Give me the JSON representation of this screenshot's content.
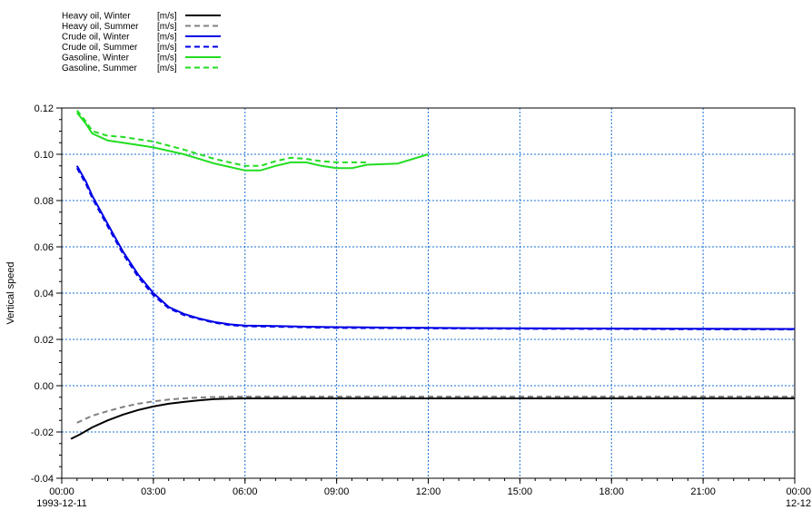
{
  "chart_data": {
    "type": "line",
    "title": "",
    "ylabel": "Vertical speed",
    "xlabel": "",
    "x_unit": "hours from 1993-12-11 00:00",
    "xlim": [
      0,
      24
    ],
    "ylim": [
      -0.04,
      0.12
    ],
    "grid": true,
    "legend_placement": "top-left",
    "x_ticks": [
      {
        "value": 0,
        "label": "00:00",
        "sublabel": "1993-12-11"
      },
      {
        "value": 3,
        "label": "03:00"
      },
      {
        "value": 6,
        "label": "06:00"
      },
      {
        "value": 9,
        "label": "09:00"
      },
      {
        "value": 12,
        "label": "12:00"
      },
      {
        "value": 15,
        "label": "15:00"
      },
      {
        "value": 18,
        "label": "18:00"
      },
      {
        "value": 21,
        "label": "21:00"
      },
      {
        "value": 24,
        "label": "00:00",
        "sublabel": "12-12"
      }
    ],
    "y_ticks": [
      {
        "value": 0.12,
        "label": "0.12"
      },
      {
        "value": 0.1,
        "label": "0.10"
      },
      {
        "value": 0.08,
        "label": "0.08"
      },
      {
        "value": 0.06,
        "label": "0.06"
      },
      {
        "value": 0.04,
        "label": "0.04"
      },
      {
        "value": 0.02,
        "label": "0.02"
      },
      {
        "value": 0.0,
        "label": "0.00"
      },
      {
        "value": -0.02,
        "label": "-0.02"
      },
      {
        "value": -0.04,
        "label": "-0.04"
      }
    ],
    "series": [
      {
        "name": "Heavy oil, Winter",
        "unit": "[m/s]",
        "color": "#000000",
        "dash": "solid",
        "x": [
          0.3,
          0.6,
          1,
          1.5,
          2,
          2.5,
          3,
          3.5,
          4,
          4.5,
          5,
          5.5,
          6,
          8,
          12,
          18,
          24
        ],
        "y": [
          -0.023,
          -0.021,
          -0.018,
          -0.015,
          -0.0125,
          -0.0105,
          -0.009,
          -0.0078,
          -0.007,
          -0.0063,
          -0.0058,
          -0.0056,
          -0.0055,
          -0.0055,
          -0.0055,
          -0.0055,
          -0.0055
        ]
      },
      {
        "name": "Heavy oil, Summer",
        "unit": "[m/s]",
        "color": "#808080",
        "dash": "dashed",
        "x": [
          0.5,
          1,
          1.5,
          2,
          2.5,
          3,
          3.5,
          4,
          4.5,
          5,
          5.5,
          6,
          8,
          12,
          18,
          24
        ],
        "y": [
          -0.016,
          -0.013,
          -0.011,
          -0.0092,
          -0.0078,
          -0.0068,
          -0.006,
          -0.0055,
          -0.0051,
          -0.0049,
          -0.0048,
          -0.0047,
          -0.0047,
          -0.0047,
          -0.0047,
          -0.0047
        ]
      },
      {
        "name": "Crude oil, Winter",
        "unit": "[m/s]",
        "color": "#0000E6",
        "dash": "solid",
        "x": [
          0.5,
          0.8,
          1,
          1.5,
          2,
          2.5,
          3,
          3.5,
          4,
          4.5,
          5,
          5.5,
          6,
          7,
          8,
          9,
          10,
          12,
          15,
          18,
          21,
          24
        ],
        "y": [
          0.095,
          0.088,
          0.082,
          0.07,
          0.058,
          0.048,
          0.04,
          0.034,
          0.031,
          0.029,
          0.0275,
          0.0265,
          0.026,
          0.0258,
          0.0255,
          0.0253,
          0.0252,
          0.025,
          0.0248,
          0.0247,
          0.0246,
          0.0245
        ]
      },
      {
        "name": "Crude oil, Summer",
        "unit": "[m/s]",
        "color": "#0000E6",
        "dash": "dashed",
        "x": [
          0.5,
          0.8,
          1,
          1.5,
          2,
          2.5,
          3,
          3.5,
          4,
          4.5,
          5,
          5.5,
          6,
          7,
          8,
          9,
          10,
          12,
          15,
          18,
          21,
          24
        ],
        "y": [
          0.094,
          0.087,
          0.081,
          0.069,
          0.057,
          0.047,
          0.039,
          0.0335,
          0.0305,
          0.0288,
          0.0272,
          0.0262,
          0.0257,
          0.0255,
          0.0252,
          0.025,
          0.0249,
          0.0248,
          0.0246,
          0.0245,
          0.0244,
          0.0243
        ]
      },
      {
        "name": "Gasoline, Winter",
        "unit": "[m/s]",
        "color": "#22DD22",
        "dash": "solid",
        "x": [
          0.5,
          0.8,
          1,
          1.5,
          2,
          3,
          4,
          5,
          6,
          6.5,
          7,
          7.5,
          8,
          8.5,
          9,
          9.5,
          10,
          11,
          12
        ],
        "y": [
          0.118,
          0.113,
          0.109,
          0.106,
          0.105,
          0.103,
          0.1,
          0.096,
          0.093,
          0.093,
          0.095,
          0.0965,
          0.0965,
          0.095,
          0.094,
          0.094,
          0.0955,
          0.096,
          0.1
        ]
      },
      {
        "name": "Gasoline, Summer",
        "unit": "[m/s]",
        "color": "#22DD22",
        "dash": "dashed",
        "x": [
          0.5,
          0.8,
          1,
          1.5,
          2,
          3,
          4,
          5,
          6,
          6.5,
          7,
          7.5,
          8,
          8.5,
          9,
          9.5,
          10
        ],
        "y": [
          0.119,
          0.114,
          0.11,
          0.108,
          0.1075,
          0.1055,
          0.102,
          0.098,
          0.095,
          0.095,
          0.097,
          0.0985,
          0.098,
          0.097,
          0.0965,
          0.0965,
          0.0965
        ]
      }
    ]
  }
}
